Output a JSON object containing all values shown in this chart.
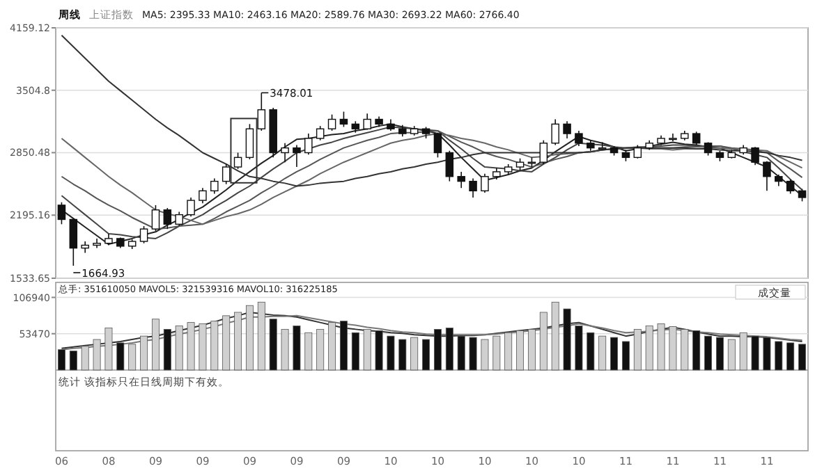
{
  "chart_data": [
    {
      "type": "candlestick",
      "title": "周线",
      "subtitle": "上证指数",
      "annotations": [
        "MA5: 2395.33 MA10: 2463.16 MA20: 2589.76 MA30: 2693.22 MA60: 2766.40",
        "3478.01",
        "1664.93"
      ],
      "categories": [
        "06",
        null,
        null,
        null,
        "08",
        null,
        null,
        null,
        "09",
        null,
        null,
        null,
        "09",
        null,
        null,
        null,
        "09",
        null,
        null,
        null,
        "09",
        null,
        null,
        null,
        "09",
        null,
        null,
        null,
        "10",
        null,
        null,
        null,
        "10",
        null,
        null,
        null,
        "10",
        null,
        null,
        null,
        "10",
        null,
        null,
        null,
        "10",
        null,
        null,
        null,
        "11",
        null,
        null,
        null,
        "11",
        null,
        null,
        null,
        "11",
        null,
        null,
        null,
        "11",
        null,
        null,
        null
      ],
      "ohlc": [
        [
          2300,
          2330,
          2100,
          2150
        ],
        [
          2150,
          2160,
          1664.93,
          1850
        ],
        [
          1850,
          1920,
          1800,
          1880
        ],
        [
          1880,
          1950,
          1850,
          1900
        ],
        [
          1900,
          2000,
          1880,
          1950
        ],
        [
          1950,
          1960,
          1850,
          1870
        ],
        [
          1870,
          1940,
          1840,
          1920
        ],
        [
          1920,
          2080,
          1900,
          2050
        ],
        [
          2050,
          2300,
          2030,
          2250
        ],
        [
          2250,
          2270,
          2050,
          2100
        ],
        [
          2100,
          2230,
          2080,
          2200
        ],
        [
          2200,
          2380,
          2180,
          2350
        ],
        [
          2350,
          2480,
          2320,
          2450
        ],
        [
          2450,
          2580,
          2420,
          2550
        ],
        [
          2550,
          2730,
          2520,
          2700
        ],
        [
          2700,
          2850,
          2680,
          2800
        ],
        [
          2800,
          3150,
          2780,
          3100
        ],
        [
          3100,
          3478.01,
          3080,
          3300
        ],
        [
          3300,
          3320,
          2800,
          2850
        ],
        [
          2850,
          2950,
          2750,
          2900
        ],
        [
          2900,
          2930,
          2700,
          2850
        ],
        [
          2850,
          3050,
          2830,
          3000
        ],
        [
          3000,
          3130,
          2980,
          3100
        ],
        [
          3100,
          3250,
          3080,
          3200
        ],
        [
          3200,
          3280,
          3120,
          3150
        ],
        [
          3150,
          3180,
          3060,
          3100
        ],
        [
          3100,
          3260,
          3090,
          3200
        ],
        [
          3200,
          3230,
          3120,
          3150
        ],
        [
          3150,
          3200,
          3080,
          3100
        ],
        [
          3100,
          3140,
          3020,
          3050
        ],
        [
          3050,
          3130,
          3030,
          3100
        ],
        [
          3100,
          3120,
          3000,
          3050
        ],
        [
          3050,
          3060,
          2800,
          2850
        ],
        [
          2850,
          2870,
          2550,
          2600
        ],
        [
          2600,
          2650,
          2480,
          2550
        ],
        [
          2550,
          2580,
          2380,
          2450
        ],
        [
          2450,
          2630,
          2430,
          2600
        ],
        [
          2600,
          2690,
          2570,
          2650
        ],
        [
          2650,
          2730,
          2620,
          2700
        ],
        [
          2700,
          2790,
          2660,
          2750
        ],
        [
          2750,
          2800,
          2700,
          2750
        ],
        [
          2750,
          2980,
          2730,
          2950
        ],
        [
          2950,
          3200,
          2930,
          3150
        ],
        [
          3150,
          3180,
          3000,
          3050
        ],
        [
          3050,
          3080,
          2920,
          2950
        ],
        [
          2950,
          2980,
          2870,
          2900
        ],
        [
          2900,
          2960,
          2880,
          2900
        ],
        [
          2900,
          2920,
          2820,
          2850
        ],
        [
          2850,
          2880,
          2760,
          2800
        ],
        [
          2800,
          2930,
          2790,
          2900
        ],
        [
          2900,
          2980,
          2880,
          2950
        ],
        [
          2950,
          3030,
          2930,
          3000
        ],
        [
          3000,
          3050,
          2970,
          3000
        ],
        [
          3000,
          3080,
          2980,
          3050
        ],
        [
          3050,
          3070,
          2930,
          2950
        ],
        [
          2950,
          2960,
          2820,
          2850
        ],
        [
          2850,
          2870,
          2760,
          2800
        ],
        [
          2800,
          2880,
          2790,
          2850
        ],
        [
          2850,
          2930,
          2830,
          2900
        ],
        [
          2900,
          2910,
          2720,
          2750
        ],
        [
          2750,
          2760,
          2450,
          2600
        ],
        [
          2600,
          2620,
          2500,
          2550
        ],
        [
          2550,
          2570,
          2420,
          2450
        ],
        [
          2450,
          2470,
          2340,
          2380
        ]
      ],
      "series": [
        {
          "type": "line",
          "color": "#222222",
          "values": [
            2250,
            2160,
            2070,
            1980,
            1890,
            1920,
            1950,
            1990,
            2020,
            2090,
            2150,
            2220,
            2280,
            2370,
            2460,
            2560,
            2650,
            2740,
            2820,
            2910,
            2990,
            3000,
            3020,
            3040,
            3050,
            3080,
            3100,
            3130,
            3150,
            3120,
            3100,
            3080,
            3050,
            2930,
            2800,
            2680,
            2560,
            2590,
            2620,
            2660,
            2690,
            2770,
            2860,
            2940,
            3020,
            2980,
            2950,
            2910,
            2870,
            2890,
            2920,
            2940,
            2960,
            2940,
            2930,
            2910,
            2900,
            2850,
            2800,
            2750,
            2700,
            2600,
            2500,
            2400
          ]
        },
        {
          "type": "line",
          "color": "#444444",
          "values": [
            2400,
            2300,
            2200,
            2100,
            2000,
            1990,
            1970,
            1960,
            1950,
            2010,
            2080,
            2140,
            2200,
            2280,
            2350,
            2430,
            2500,
            2590,
            2680,
            2760,
            2850,
            2890,
            2930,
            2960,
            3000,
            3030,
            3060,
            3090,
            3120,
            3110,
            3100,
            3090,
            3080,
            2980,
            2890,
            2790,
            2700,
            2690,
            2680,
            2660,
            2650,
            2730,
            2800,
            2880,
            2950,
            2940,
            2930,
            2910,
            2900,
            2910,
            2910,
            2920,
            2930,
            2930,
            2920,
            2920,
            2920,
            2890,
            2860,
            2830,
            2800,
            2690,
            2570,
            2460
          ]
        },
        {
          "type": "line",
          "color": "#555555",
          "values": [
            2600,
            2520,
            2450,
            2370,
            2300,
            2240,
            2170,
            2110,
            2050,
            2060,
            2080,
            2090,
            2100,
            2160,
            2230,
            2290,
            2350,
            2430,
            2500,
            2580,
            2650,
            2710,
            2780,
            2840,
            2900,
            2940,
            2980,
            3010,
            3050,
            3060,
            3060,
            3070,
            3080,
            3020,
            2960,
            2910,
            2850,
            2810,
            2780,
            2740,
            2700,
            2740,
            2780,
            2810,
            2850,
            2860,
            2880,
            2890,
            2900,
            2900,
            2900,
            2900,
            2900,
            2910,
            2910,
            2920,
            2920,
            2900,
            2890,
            2870,
            2850,
            2760,
            2680,
            2590
          ]
        },
        {
          "type": "line",
          "color": "#666666",
          "values": [
            3000,
            2900,
            2800,
            2700,
            2600,
            2510,
            2430,
            2340,
            2250,
            2210,
            2180,
            2140,
            2100,
            2140,
            2180,
            2210,
            2250,
            2310,
            2380,
            2440,
            2500,
            2560,
            2630,
            2690,
            2750,
            2800,
            2850,
            2900,
            2950,
            2980,
            3000,
            3030,
            3050,
            3030,
            3000,
            2980,
            2950,
            2910,
            2880,
            2840,
            2800,
            2810,
            2830,
            2840,
            2850,
            2860,
            2880,
            2890,
            2900,
            2900,
            2890,
            2890,
            2880,
            2890,
            2890,
            2900,
            2900,
            2890,
            2890,
            2880,
            2870,
            2810,
            2750,
            2690
          ]
        },
        {
          "type": "line",
          "color": "#333333",
          "values": [
            4080,
            3960,
            3840,
            3720,
            3600,
            3500,
            3400,
            3300,
            3200,
            3110,
            3030,
            2940,
            2850,
            2790,
            2730,
            2660,
            2600,
            2580,
            2550,
            2530,
            2500,
            2510,
            2530,
            2540,
            2550,
            2580,
            2600,
            2630,
            2650,
            2680,
            2700,
            2730,
            2750,
            2780,
            2800,
            2830,
            2850,
            2850,
            2850,
            2850,
            2850,
            2850,
            2850,
            2850,
            2850,
            2860,
            2880,
            2890,
            2900,
            2900,
            2900,
            2900,
            2900,
            2900,
            2890,
            2890,
            2880,
            2870,
            2870,
            2860,
            2850,
            2820,
            2800,
            2770
          ]
        }
      ],
      "ylim": [
        1533.65,
        4159.12
      ],
      "yticks": [
        1533.65,
        2195.16,
        2850.48,
        3504.8,
        4159.12
      ],
      "tick_labels": "y",
      "grid": "y"
    },
    {
      "type": "bar",
      "annotations": [
        "总手: 351610050 MAVOL5: 321539316 MAVOL10: 316225185",
        "成交量",
        "统计 该指标只在日线周期下有效。"
      ],
      "categories": [
        "06",
        null,
        null,
        null,
        "08",
        null,
        null,
        null,
        "09",
        null,
        null,
        null,
        "09",
        null,
        null,
        null,
        "09",
        null,
        null,
        null,
        "09",
        null,
        null,
        null,
        "09",
        null,
        null,
        null,
        "10",
        null,
        null,
        null,
        "10",
        null,
        null,
        null,
        "10",
        null,
        null,
        null,
        "10",
        null,
        null,
        null,
        "10",
        null,
        null,
        null,
        "11",
        null,
        null,
        null,
        "11",
        null,
        null,
        null,
        "11",
        null,
        null,
        null,
        "11",
        null,
        null,
        null
      ],
      "ref_lines": [
        {
          "axis": "y",
          "value": 0,
          "color": "#999999"
        }
      ],
      "series": [
        {
          "type": "bar",
          "values": [
            30000,
            28000,
            35000,
            45000,
            62000,
            40000,
            38000,
            50000,
            75000,
            60000,
            65000,
            70000,
            68000,
            72000,
            80000,
            85000,
            95000,
            100000,
            75000,
            60000,
            65000,
            55000,
            60000,
            70000,
            72000,
            55000,
            60000,
            58000,
            50000,
            45000,
            48000,
            45000,
            60000,
            62000,
            50000,
            48000,
            45000,
            50000,
            55000,
            58000,
            60000,
            85000,
            100000,
            90000,
            65000,
            55000,
            50000,
            48000,
            42000,
            60000,
            65000,
            68000,
            64000,
            60000,
            58000,
            50000,
            48000,
            45000,
            55000,
            50000,
            48000,
            42000,
            40000,
            38000
          ],
          "colors": [
            "#111111",
            "#111111",
            "#d0d0d0",
            "#d0d0d0",
            "#d0d0d0",
            "#111111",
            "#d0d0d0",
            "#d0d0d0",
            "#d0d0d0",
            "#111111",
            "#d0d0d0",
            "#d0d0d0",
            "#d0d0d0",
            "#d0d0d0",
            "#d0d0d0",
            "#d0d0d0",
            "#d0d0d0",
            "#d0d0d0",
            "#111111",
            "#d0d0d0",
            "#111111",
            "#d0d0d0",
            "#d0d0d0",
            "#d0d0d0",
            "#111111",
            "#111111",
            "#d0d0d0",
            "#111111",
            "#111111",
            "#111111",
            "#d0d0d0",
            "#111111",
            "#111111",
            "#111111",
            "#111111",
            "#111111",
            "#d0d0d0",
            "#d0d0d0",
            "#d0d0d0",
            "#d0d0d0",
            "#d0d0d0",
            "#d0d0d0",
            "#d0d0d0",
            "#111111",
            "#111111",
            "#111111",
            "#d0d0d0",
            "#111111",
            "#111111",
            "#d0d0d0",
            "#d0d0d0",
            "#d0d0d0",
            "#d0d0d0",
            "#d0d0d0",
            "#111111",
            "#111111",
            "#111111",
            "#d0d0d0",
            "#d0d0d0",
            "#111111",
            "#111111",
            "#111111",
            "#111111",
            "#111111"
          ]
        },
        {
          "type": "line",
          "color": "#333333",
          "values": [
            32000,
            34000,
            36000,
            38000,
            40000,
            42000,
            45000,
            48000,
            50000,
            54000,
            58000,
            62000,
            66000,
            71000,
            76000,
            80000,
            85000,
            83000,
            81000,
            80000,
            78000,
            74000,
            70000,
            66000,
            62000,
            60000,
            58000,
            57000,
            55000,
            54000,
            52000,
            51000,
            50000,
            50000,
            51000,
            51000,
            52000,
            54000,
            56000,
            58000,
            60000,
            62000,
            65000,
            68000,
            70000,
            65000,
            60000,
            55000,
            50000,
            53000,
            57000,
            60000,
            63000,
            60000,
            56000,
            53000,
            50000,
            50000,
            49000,
            49000,
            48000,
            46000,
            44000,
            42000
          ]
        },
        {
          "type": "line",
          "color": "#777777",
          "values": [
            30000,
            32000,
            33000,
            35000,
            36000,
            38000,
            40000,
            43000,
            45000,
            49000,
            53000,
            56000,
            60000,
            64000,
            69000,
            73000,
            78000,
            78000,
            79000,
            79000,
            80000,
            77000,
            74000,
            71000,
            68000,
            66000,
            63000,
            61000,
            58000,
            56000,
            55000,
            53000,
            52000,
            52000,
            52000,
            52000,
            52000,
            53000,
            55000,
            56000,
            58000,
            60000,
            63000,
            65000,
            68000,
            65000,
            62000,
            58000,
            55000,
            56000,
            57000,
            59000,
            60000,
            58000,
            56000,
            55000,
            53000,
            52000,
            51000,
            50000,
            49000,
            47000,
            45000,
            44000
          ]
        }
      ],
      "ylim": [
        -118800,
        129000
      ],
      "yticks": [
        53470,
        106940
      ],
      "grid": "y"
    }
  ]
}
